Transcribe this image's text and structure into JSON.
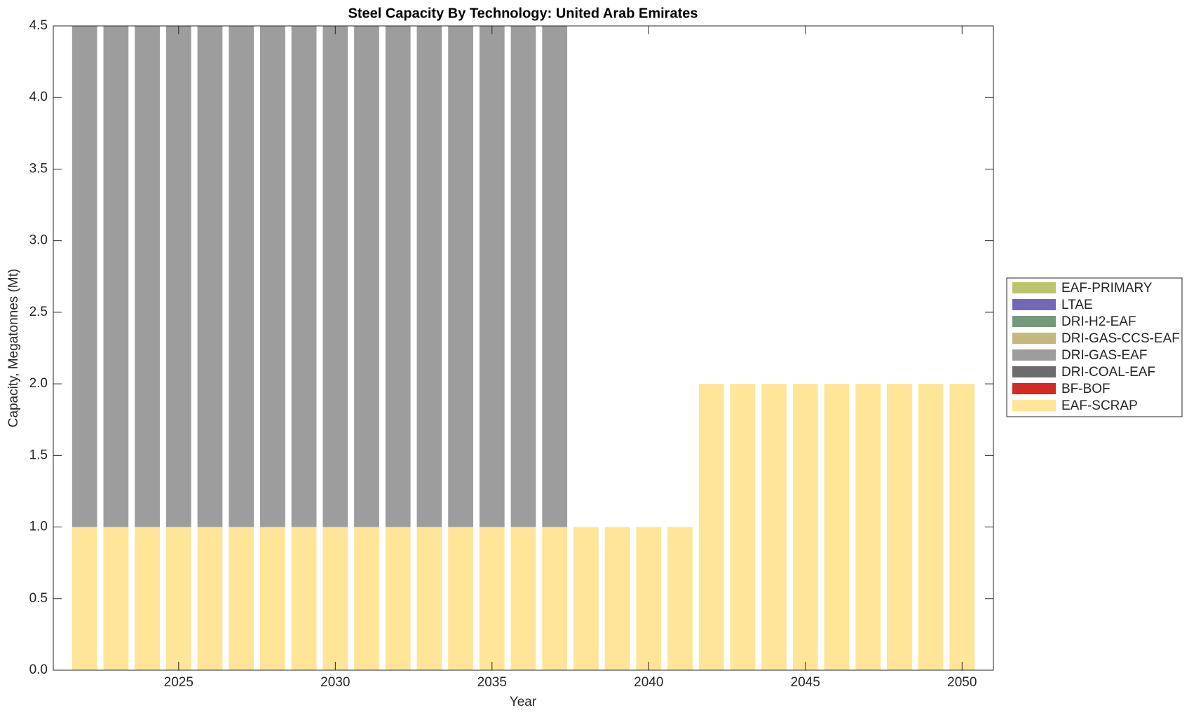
{
  "chart_data": {
    "type": "bar",
    "stacked": true,
    "title": "Steel Capacity By Technology: United Arab Emirates",
    "xlabel": "Year",
    "ylabel": "Capacity, Megatonnes (Mt)",
    "x": [
      2022,
      2023,
      2024,
      2025,
      2026,
      2027,
      2028,
      2029,
      2030,
      2031,
      2032,
      2033,
      2034,
      2035,
      2036,
      2037,
      2038,
      2039,
      2040,
      2041,
      2042,
      2043,
      2044,
      2045,
      2046,
      2047,
      2048,
      2049,
      2050
    ],
    "series": [
      {
        "name": "EAF-SCRAP",
        "color": "#fee597",
        "values": [
          1,
          1,
          1,
          1,
          1,
          1,
          1,
          1,
          1,
          1,
          1,
          1,
          1,
          1,
          1,
          1,
          1,
          1,
          1,
          1,
          2,
          2,
          2,
          2,
          2,
          2,
          2,
          2,
          2
        ]
      },
      {
        "name": "BF-BOF",
        "color": "#d42a24",
        "values": [
          0,
          0,
          0,
          0,
          0,
          0,
          0,
          0,
          0,
          0,
          0,
          0,
          0,
          0,
          0,
          0,
          0,
          0,
          0,
          0,
          0,
          0,
          0,
          0,
          0,
          0,
          0,
          0,
          0
        ]
      },
      {
        "name": "DRI-COAL-EAF",
        "color": "#6c6c6c",
        "values": [
          0,
          0,
          0,
          0,
          0,
          0,
          0,
          0,
          0,
          0,
          0,
          0,
          0,
          0,
          0,
          0,
          0,
          0,
          0,
          0,
          0,
          0,
          0,
          0,
          0,
          0,
          0,
          0,
          0
        ]
      },
      {
        "name": "DRI-GAS-EAF",
        "color": "#9d9d9d",
        "values": [
          3.5,
          3.5,
          3.5,
          3.5,
          3.5,
          3.5,
          3.5,
          3.5,
          3.5,
          3.5,
          3.5,
          3.5,
          3.5,
          3.5,
          3.5,
          3.5,
          0,
          0,
          0,
          0,
          0,
          0,
          0,
          0,
          0,
          0,
          0,
          0,
          0
        ]
      },
      {
        "name": "DRI-GAS-CCS-EAF",
        "color": "#c4b87e",
        "values": [
          0,
          0,
          0,
          0,
          0,
          0,
          0,
          0,
          0,
          0,
          0,
          0,
          0,
          0,
          0,
          0,
          0,
          0,
          0,
          0,
          0,
          0,
          0,
          0,
          0,
          0,
          0,
          0,
          0
        ]
      },
      {
        "name": "DRI-H2-EAF",
        "color": "#76987a",
        "values": [
          0,
          0,
          0,
          0,
          0,
          0,
          0,
          0,
          0,
          0,
          0,
          0,
          0,
          0,
          0,
          0,
          0,
          0,
          0,
          0,
          0,
          0,
          0,
          0,
          0,
          0,
          0,
          0,
          0
        ]
      },
      {
        "name": "LTAE",
        "color": "#7467b5",
        "values": [
          0,
          0,
          0,
          0,
          0,
          0,
          0,
          0,
          0,
          0,
          0,
          0,
          0,
          0,
          0,
          0,
          0,
          0,
          0,
          0,
          0,
          0,
          0,
          0,
          0,
          0,
          0,
          0,
          0
        ]
      },
      {
        "name": "EAF-PRIMARY",
        "color": "#bcc46a",
        "values": [
          0,
          0,
          0,
          0,
          0,
          0,
          0,
          0,
          0,
          0,
          0,
          0,
          0,
          0,
          0,
          0,
          0,
          0,
          0,
          0,
          0,
          0,
          0,
          0,
          0,
          0,
          0,
          0,
          0
        ]
      }
    ],
    "xlim": [
      2021,
      2051
    ],
    "xticks": [
      2025,
      2030,
      2035,
      2040,
      2045,
      2050
    ],
    "ylim": [
      0,
      4.5
    ],
    "yticks": [
      {
        "value": 0,
        "label": "0.0"
      },
      {
        "value": 0.5,
        "label": "0.5"
      },
      {
        "value": 1,
        "label": "1.0"
      },
      {
        "value": 1.5,
        "label": "1.5"
      },
      {
        "value": 2,
        "label": "2.0"
      },
      {
        "value": 2.5,
        "label": "2.5"
      },
      {
        "value": 3,
        "label": "3.0"
      },
      {
        "value": 3.5,
        "label": "3.5"
      },
      {
        "value": 4,
        "label": "4.0"
      },
      {
        "value": 4.5,
        "label": "4.5"
      }
    ],
    "grid": false,
    "legend": "east"
  }
}
